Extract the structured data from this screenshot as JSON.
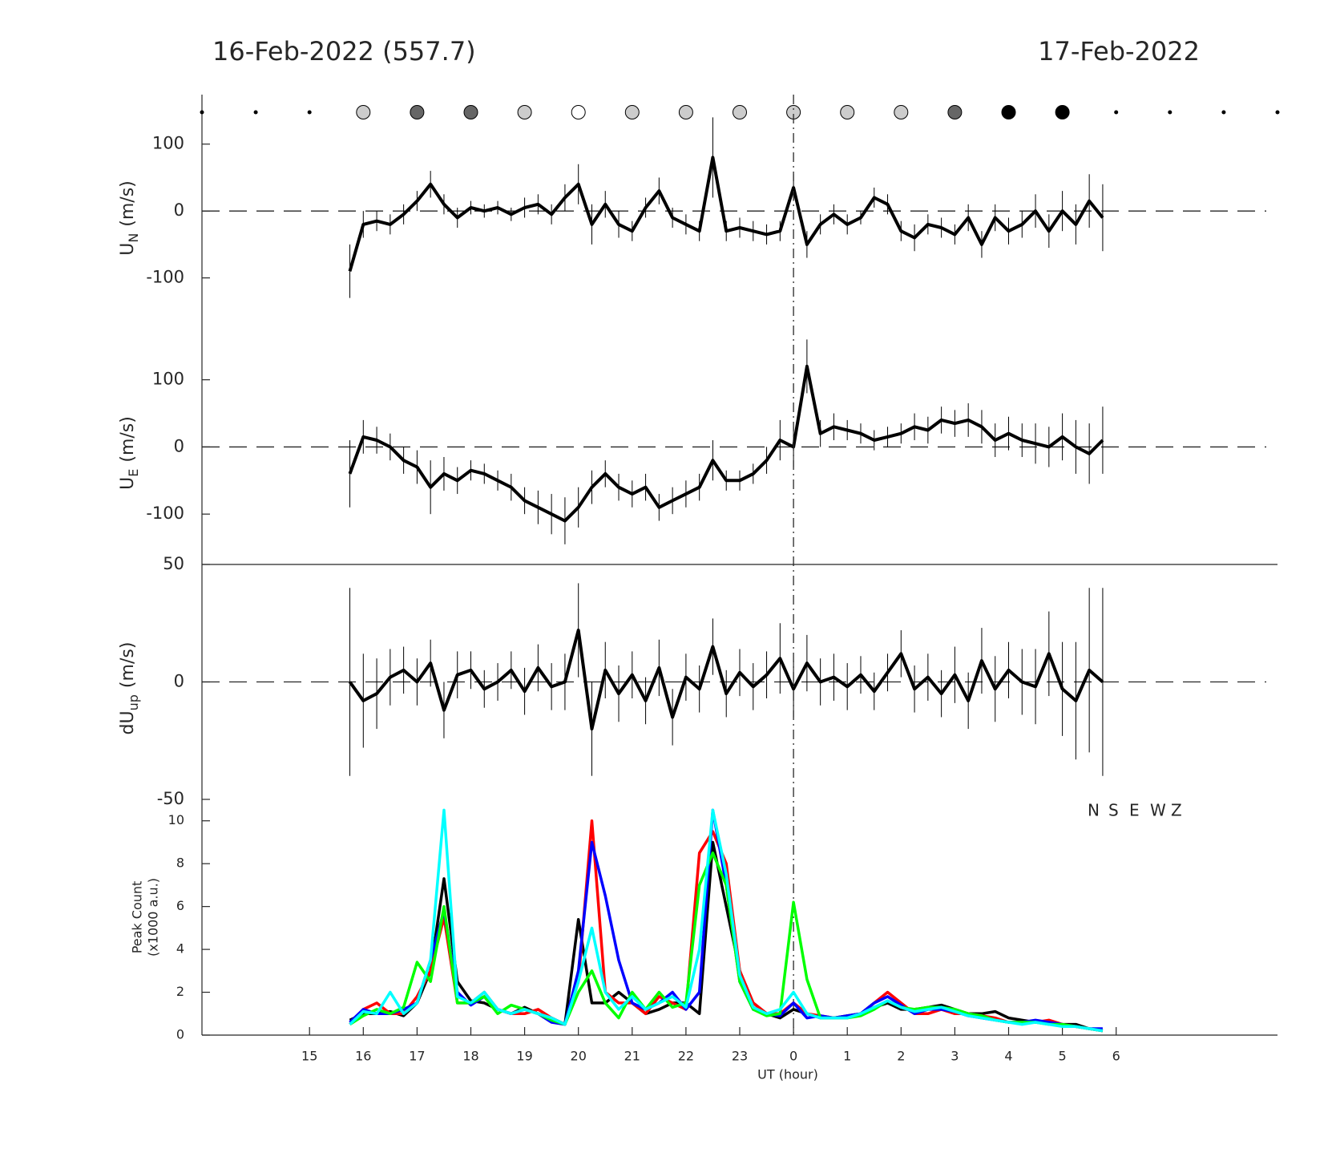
{
  "chart_data": [
    {
      "type": "line",
      "title": "16-Feb-2022 (557.7)",
      "title_right": "17-Feb-2022",
      "ylabel": "U",
      "ylabel_sub": "N",
      "ylabel_unit": "(m/s)",
      "xlim": [
        13,
        33
      ],
      "ylim": [
        -176,
        174
      ],
      "yticks": [
        -100,
        0,
        100
      ],
      "zero_line": true,
      "sky_x": [
        13,
        14,
        15,
        16,
        17,
        18,
        19,
        20,
        21,
        22,
        23,
        24,
        25,
        26,
        27,
        28,
        29,
        30,
        31,
        32,
        33
      ],
      "sky_colors": [
        null,
        null,
        null,
        "#cccccc",
        "#666666",
        "#666666",
        "#cccccc",
        "#ffffff",
        "#cccccc",
        "#cccccc",
        "#cccccc",
        "#cccccc",
        "#cccccc",
        "#cccccc",
        "#666666",
        "#000000",
        "#000000",
        null,
        null,
        null,
        null
      ],
      "x": [
        15.75,
        16,
        16.25,
        16.5,
        16.75,
        17,
        17.25,
        17.5,
        17.75,
        18,
        18.25,
        18.5,
        18.75,
        19,
        19.25,
        19.5,
        19.75,
        20,
        20.25,
        20.5,
        20.75,
        21,
        21.25,
        21.5,
        21.75,
        22,
        22.25,
        22.5,
        22.75,
        23,
        23.25,
        23.5,
        23.75,
        24,
        24.25,
        24.5,
        24.75,
        25,
        25.25,
        25.5,
        25.75,
        26,
        26.25,
        26.5,
        26.75,
        27,
        27.25,
        27.5,
        27.75,
        28,
        28.25,
        28.5,
        28.75,
        29,
        29.25,
        29.5,
        29.75
      ],
      "series": [
        {
          "color": "#000000",
          "values": [
            -90,
            -20,
            -15,
            -20,
            -5,
            15,
            40,
            10,
            -10,
            5,
            0,
            5,
            -5,
            5,
            10,
            -5,
            20,
            40,
            -20,
            10,
            -20,
            -30,
            5,
            30,
            -10,
            -20,
            -30,
            80,
            -30,
            -25,
            -30,
            -35,
            -30,
            35,
            -50,
            -20,
            -5,
            -20,
            -10,
            20,
            10,
            -30,
            -40,
            -20,
            -25,
            -35,
            -10,
            -50,
            -10,
            -30,
            -20,
            0,
            -30,
            0,
            -20,
            15,
            -10
          ],
          "errors": [
            40,
            20,
            15,
            15,
            15,
            15,
            20,
            15,
            15,
            10,
            10,
            10,
            10,
            15,
            15,
            15,
            20,
            30,
            30,
            20,
            20,
            15,
            15,
            20,
            15,
            15,
            15,
            60,
            15,
            15,
            15,
            15,
            15,
            20,
            20,
            15,
            15,
            15,
            10,
            15,
            15,
            15,
            20,
            15,
            15,
            15,
            20,
            20,
            20,
            20,
            20,
            25,
            25,
            30,
            30,
            40,
            50
          ]
        }
      ]
    },
    {
      "type": "line",
      "ylabel": "U",
      "ylabel_sub": "E",
      "ylabel_unit": "(m/s)",
      "xlim": [
        13,
        33
      ],
      "ylim": [
        -175,
        176
      ],
      "yticks": [
        -100,
        0,
        100
      ],
      "zero_line": true,
      "x": [
        15.75,
        16,
        16.25,
        16.5,
        16.75,
        17,
        17.25,
        17.5,
        17.75,
        18,
        18.25,
        18.5,
        18.75,
        19,
        19.25,
        19.5,
        19.75,
        20,
        20.25,
        20.5,
        20.75,
        21,
        21.25,
        21.5,
        21.75,
        22,
        22.25,
        22.5,
        22.75,
        23,
        23.25,
        23.5,
        23.75,
        24,
        24.25,
        24.5,
        24.75,
        25,
        25.25,
        25.5,
        25.75,
        26,
        26.25,
        26.5,
        26.75,
        27,
        27.25,
        27.5,
        27.75,
        28,
        28.25,
        28.5,
        28.75,
        29,
        29.25,
        29.5,
        29.75
      ],
      "series": [
        {
          "color": "#000000",
          "values": [
            -40,
            15,
            10,
            0,
            -20,
            -30,
            -60,
            -40,
            -50,
            -35,
            -40,
            -50,
            -60,
            -80,
            -90,
            -100,
            -110,
            -90,
            -60,
            -40,
            -60,
            -70,
            -60,
            -90,
            -80,
            -70,
            -60,
            -20,
            -50,
            -50,
            -40,
            -20,
            10,
            0,
            120,
            20,
            30,
            25,
            20,
            10,
            15,
            20,
            30,
            25,
            40,
            35,
            40,
            30,
            10,
            20,
            10,
            5,
            0,
            15,
            0,
            -10,
            10
          ],
          "errors": [
            50,
            25,
            20,
            20,
            20,
            25,
            40,
            25,
            20,
            15,
            15,
            15,
            20,
            20,
            25,
            30,
            35,
            30,
            25,
            20,
            20,
            20,
            20,
            20,
            20,
            20,
            20,
            30,
            15,
            15,
            15,
            20,
            30,
            30,
            40,
            20,
            20,
            15,
            15,
            15,
            15,
            15,
            20,
            20,
            20,
            20,
            25,
            25,
            25,
            25,
            25,
            30,
            30,
            35,
            40,
            45,
            50
          ]
        }
      ]
    },
    {
      "type": "line",
      "ylabel": "dU",
      "ylabel_sub": "up",
      "ylabel_unit": "(m/s)",
      "xlim": [
        13,
        33
      ],
      "ylim": [
        -50,
        50
      ],
      "yticks": [
        -50,
        0,
        50
      ],
      "zero_line": true,
      "x": [
        15.75,
        16,
        16.25,
        16.5,
        16.75,
        17,
        17.25,
        17.5,
        17.75,
        18,
        18.25,
        18.5,
        18.75,
        19,
        19.25,
        19.5,
        19.75,
        20,
        20.25,
        20.5,
        20.75,
        21,
        21.25,
        21.5,
        21.75,
        22,
        22.25,
        22.5,
        22.75,
        23,
        23.25,
        23.5,
        23.75,
        24,
        24.25,
        24.5,
        24.75,
        25,
        25.25,
        25.5,
        25.75,
        26,
        26.25,
        26.5,
        26.75,
        27,
        27.25,
        27.5,
        27.75,
        28,
        28.25,
        28.5,
        28.75,
        29,
        29.25,
        29.5,
        29.75
      ],
      "series": [
        {
          "color": "#000000",
          "values": [
            0,
            -8,
            -5,
            2,
            5,
            0,
            8,
            -12,
            3,
            5,
            -3,
            0,
            5,
            -4,
            6,
            -2,
            0,
            22,
            -20,
            5,
            -5,
            3,
            -8,
            6,
            -15,
            2,
            -3,
            15,
            -5,
            4,
            -2,
            3,
            10,
            -3,
            8,
            0,
            2,
            -2,
            3,
            -4,
            4,
            12,
            -3,
            2,
            -5,
            3,
            -8,
            9,
            -3,
            5,
            0,
            -2,
            12,
            -3,
            -8,
            5,
            0
          ],
          "errors": [
            40,
            20,
            15,
            12,
            10,
            10,
            10,
            12,
            10,
            8,
            8,
            8,
            8,
            10,
            10,
            10,
            12,
            20,
            20,
            12,
            12,
            10,
            10,
            12,
            12,
            10,
            10,
            12,
            10,
            10,
            10,
            10,
            15,
            12,
            12,
            10,
            10,
            10,
            8,
            8,
            8,
            10,
            10,
            10,
            10,
            12,
            12,
            14,
            14,
            12,
            14,
            16,
            18,
            20,
            25,
            35,
            40
          ]
        }
      ]
    },
    {
      "type": "line",
      "ylabel": "Peak Count",
      "ylabel_2": "(x1000 a.u.)",
      "xlabel": "UT (hour)",
      "xlim": [
        13,
        33
      ],
      "ylim": [
        0,
        11
      ],
      "yticks": [
        0,
        2,
        4,
        6,
        8,
        10
      ],
      "reference_x": 24,
      "xticks": [
        15,
        16,
        17,
        18,
        19,
        20,
        21,
        22,
        23,
        {
          "value": 24,
          "label": "0"
        },
        {
          "value": 25,
          "label": "1"
        },
        {
          "value": 26,
          "label": "2"
        },
        {
          "value": 27,
          "label": "3"
        },
        {
          "value": 28,
          "label": "4"
        },
        {
          "value": 29,
          "label": "5"
        },
        {
          "value": 30,
          "label": "6"
        }
      ],
      "x": [
        15.75,
        16,
        16.25,
        16.5,
        16.75,
        17,
        17.25,
        17.5,
        17.75,
        18,
        18.25,
        18.5,
        18.75,
        19,
        19.25,
        19.5,
        19.75,
        20,
        20.25,
        20.5,
        20.75,
        21,
        21.25,
        21.5,
        21.75,
        22,
        22.25,
        22.5,
        22.75,
        23,
        23.25,
        23.5,
        23.75,
        24,
        24.25,
        24.5,
        24.75,
        25,
        25.25,
        25.5,
        25.75,
        26,
        26.25,
        26.5,
        26.75,
        27,
        27.25,
        27.5,
        27.75,
        28,
        28.25,
        28.5,
        28.75,
        29,
        29.25,
        29.5,
        29.75
      ],
      "series": [
        {
          "name": "N",
          "color": "#000000",
          "values": [
            0.7,
            1.0,
            1.0,
            1.1,
            0.9,
            1.5,
            3.0,
            7.3,
            2.5,
            1.6,
            1.5,
            1.2,
            1.0,
            1.3,
            1.0,
            0.8,
            0.5,
            5.4,
            1.5,
            1.5,
            2.0,
            1.5,
            1.0,
            1.2,
            1.5,
            1.5,
            1.0,
            9.0,
            6.0,
            3.0,
            1.5,
            1.0,
            0.8,
            1.2,
            1.0,
            0.8,
            0.8,
            0.9,
            1.0,
            1.3,
            1.5,
            1.2,
            1.2,
            1.3,
            1.4,
            1.2,
            1.0,
            1.0,
            1.1,
            0.8,
            0.7,
            0.6,
            0.6,
            0.5,
            0.5,
            0.3,
            0.2
          ]
        },
        {
          "name": "S",
          "color": "#ff0000",
          "values": [
            0.5,
            1.2,
            1.5,
            1.0,
            1.0,
            1.8,
            3.0,
            5.5,
            1.5,
            1.5,
            2.0,
            1.2,
            1.0,
            1.0,
            1.2,
            0.8,
            0.5,
            2.5,
            10.0,
            2.0,
            1.5,
            1.5,
            1.0,
            1.8,
            1.5,
            1.2,
            8.5,
            9.5,
            8.0,
            3.0,
            1.5,
            1.0,
            1.0,
            1.5,
            1.0,
            0.9,
            0.8,
            0.8,
            1.0,
            1.5,
            2.0,
            1.5,
            1.0,
            1.0,
            1.2,
            1.0,
            1.0,
            0.9,
            0.8,
            0.6,
            0.6,
            0.6,
            0.7,
            0.5,
            0.4,
            0.3,
            0.2
          ]
        },
        {
          "name": "E",
          "color": "#0000ff",
          "values": [
            0.6,
            1.2,
            1.0,
            1.0,
            1.2,
            1.5,
            3.5,
            5.8,
            2.0,
            1.4,
            1.8,
            1.2,
            1.0,
            1.2,
            1.0,
            0.6,
            0.5,
            3.0,
            9.0,
            6.5,
            3.5,
            1.5,
            1.2,
            1.5,
            2.0,
            1.2,
            2.0,
            10.5,
            7.0,
            2.5,
            1.2,
            1.0,
            0.9,
            1.5,
            0.8,
            0.9,
            0.8,
            0.9,
            1.0,
            1.5,
            1.8,
            1.4,
            1.0,
            1.2,
            1.2,
            1.1,
            0.9,
            0.8,
            0.7,
            0.6,
            0.6,
            0.7,
            0.6,
            0.5,
            0.4,
            0.3,
            0.3
          ]
        },
        {
          "name": "W",
          "color": "#00ff00",
          "values": [
            0.5,
            0.9,
            1.2,
            1.0,
            1.3,
            3.4,
            2.5,
            6.0,
            1.5,
            1.5,
            1.8,
            1.0,
            1.4,
            1.2,
            1.0,
            0.7,
            0.5,
            2.0,
            3.0,
            1.5,
            0.8,
            2.0,
            1.2,
            2.0,
            1.3,
            1.5,
            7.0,
            8.5,
            7.0,
            2.5,
            1.2,
            0.9,
            1.0,
            6.2,
            2.6,
            0.8,
            0.8,
            0.8,
            0.9,
            1.2,
            1.6,
            1.3,
            1.2,
            1.3,
            1.3,
            1.2,
            1.0,
            0.9,
            0.7,
            0.6,
            0.6,
            0.6,
            0.5,
            0.5,
            0.4,
            0.3,
            0.2
          ]
        },
        {
          "name": "Z",
          "color": "#00ffff",
          "values": [
            0.5,
            1.1,
            1.0,
            2.0,
            1.0,
            1.5,
            3.5,
            10.5,
            1.8,
            1.5,
            2.0,
            1.2,
            1.0,
            1.2,
            1.0,
            0.8,
            0.5,
            2.5,
            5.0,
            2.0,
            1.2,
            1.8,
            1.2,
            1.5,
            1.8,
            1.3,
            4.0,
            10.5,
            7.5,
            2.8,
            1.3,
            1.0,
            1.2,
            2.0,
            1.0,
            0.8,
            0.8,
            0.8,
            1.0,
            1.3,
            1.6,
            1.3,
            1.1,
            1.2,
            1.3,
            1.1,
            0.9,
            0.8,
            0.7,
            0.6,
            0.5,
            0.6,
            0.5,
            0.4,
            0.4,
            0.3,
            0.2
          ]
        }
      ]
    }
  ]
}
